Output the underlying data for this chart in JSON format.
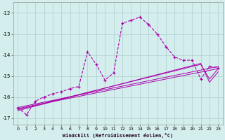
{
  "xlabel": "Windchill (Refroidissement éolien,°C)",
  "bg_color": "#d4eeee",
  "grid_color": "#b0cccc",
  "line_color": "#aa00aa",
  "xlim": [
    -0.5,
    23.5
  ],
  "ylim": [
    -17.3,
    -11.5
  ],
  "xticks": [
    0,
    1,
    2,
    3,
    4,
    5,
    6,
    7,
    8,
    9,
    10,
    11,
    12,
    13,
    14,
    15,
    16,
    17,
    18,
    19,
    20,
    21,
    22,
    23
  ],
  "yticks": [
    -17,
    -16,
    -15,
    -14,
    -13,
    -12
  ],
  "series_main": [
    [
      0,
      -16.5
    ],
    [
      1,
      -16.85
    ],
    [
      2,
      -16.2
    ],
    [
      3,
      -16.0
    ],
    [
      4,
      -15.85
    ],
    [
      5,
      -15.75
    ],
    [
      6,
      -15.6
    ],
    [
      7,
      -15.5
    ],
    [
      8,
      -13.85
    ],
    [
      9,
      -14.45
    ],
    [
      10,
      -15.2
    ],
    [
      11,
      -14.85
    ],
    [
      12,
      -12.5
    ],
    [
      13,
      -12.35
    ],
    [
      14,
      -12.2
    ],
    [
      15,
      -12.55
    ],
    [
      16,
      -13.0
    ],
    [
      17,
      -13.6
    ],
    [
      18,
      -14.1
    ],
    [
      19,
      -14.25
    ],
    [
      20,
      -14.25
    ],
    [
      21,
      -15.15
    ],
    [
      22,
      -14.55
    ],
    [
      23,
      -14.6
    ]
  ],
  "series_lin1": [
    [
      0,
      -16.5
    ],
    [
      23,
      -14.55
    ]
  ],
  "series_lin2": [
    [
      0,
      -16.55
    ],
    [
      23,
      -14.65
    ]
  ],
  "series_lin3": [
    [
      0,
      -16.6
    ],
    [
      21,
      -14.45
    ],
    [
      22,
      -15.15
    ],
    [
      23,
      -14.65
    ]
  ],
  "series_lin4": [
    [
      0,
      -16.65
    ],
    [
      21,
      -14.4
    ],
    [
      22,
      -15.3
    ],
    [
      23,
      -14.8
    ]
  ]
}
